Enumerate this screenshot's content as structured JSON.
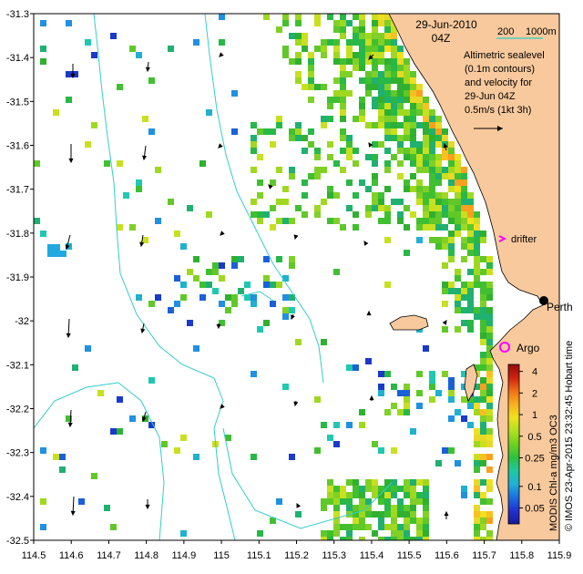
{
  "map": {
    "lon_range": [
      114.5,
      115.9
    ],
    "lat_range": [
      -32.5,
      -31.3
    ],
    "x_ticks": [
      "114.5",
      "114.6",
      "114.7",
      "114.8",
      "114.9",
      "115",
      "115.1",
      "115.2",
      "115.3",
      "115.4",
      "115.5",
      "115.6",
      "115.7",
      "115.8",
      "115.9"
    ],
    "y_ticks": [
      "-31.3",
      "-31.4",
      "-31.5",
      "-31.6",
      "-31.7",
      "-31.8",
      "-31.9",
      "-32",
      "-32.1",
      "-32.2",
      "-32.3",
      "-32.4",
      "-32.5"
    ],
    "colors": {
      "land": "#f8c99c",
      "contour": "#33cccc",
      "coast": "#000000"
    }
  },
  "annotation": {
    "date": "29-Jun-2010",
    "time": "04Z",
    "scale_label": "200",
    "scale_label2": "1000m",
    "desc1": "Altimetric sealevel",
    "desc2": "(0.1m contours)",
    "desc3": "and velocity for",
    "desc4": "29-Jun 04Z",
    "velocity_scale": "0.5m/s (1kt 3h)"
  },
  "labels": {
    "drifter": "drifter",
    "argo": "Argo",
    "perth": "Perth"
  },
  "credit": {
    "left": "© IMOS 23-Apr-2015 23:32:45 Hobart time",
    "right": "MODIS Chl-a mg/m3 OC3"
  },
  "colorbar": {
    "ticks": [
      "4",
      "2",
      "1",
      "0.5",
      "0.25",
      "0.1",
      "0.05"
    ],
    "tick_values": [
      4,
      2,
      1,
      0.5,
      0.25,
      0.1,
      0.05
    ],
    "range": [
      0.03,
      5
    ],
    "colors": [
      "#1a1a9a",
      "#2030d0",
      "#1a70e0",
      "#20b0d8",
      "#20c8a0",
      "#30c040",
      "#70d020",
      "#b0e020",
      "#f0e020",
      "#f8b020",
      "#f07018",
      "#d02010",
      "#901010"
    ]
  }
}
